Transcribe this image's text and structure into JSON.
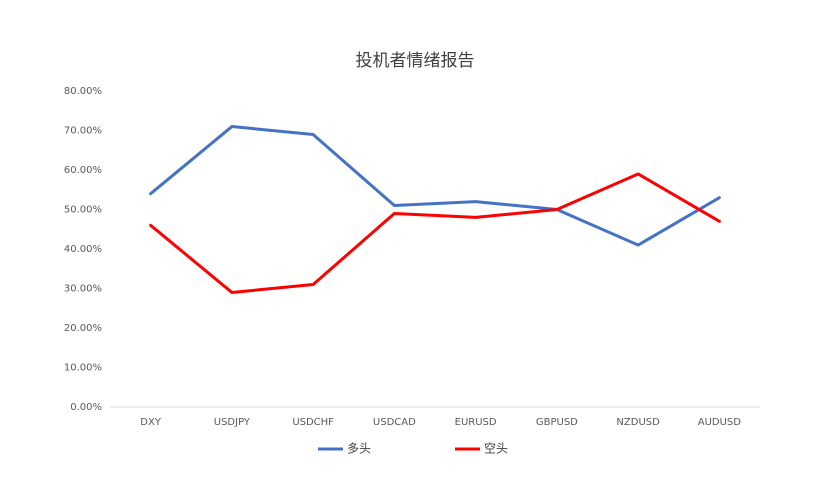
{
  "chart_data": {
    "type": "line",
    "title": "投机者情绪报告",
    "categories": [
      "DXY",
      "USDJPY",
      "USDCHF",
      "USDCAD",
      "EURUSD",
      "GBPUSD",
      "NZDUSD",
      "AUDUSD"
    ],
    "series": [
      {
        "name": "多头",
        "color": "#4472c4",
        "values": [
          54,
          71,
          69,
          51,
          52,
          50,
          41,
          53
        ]
      },
      {
        "name": "空头",
        "color": "#ff0000",
        "values": [
          46,
          29,
          31,
          49,
          48,
          50,
          59,
          47
        ]
      }
    ],
    "ylim": [
      0,
      80
    ],
    "yticks": [
      {
        "value": 0,
        "label": "0.00%"
      },
      {
        "value": 10,
        "label": "10.00%"
      },
      {
        "value": 20,
        "label": "20.00%"
      },
      {
        "value": 30,
        "label": "30.00%"
      },
      {
        "value": 40,
        "label": "40.00%"
      },
      {
        "value": 50,
        "label": "50.00%"
      },
      {
        "value": 60,
        "label": "60.00%"
      },
      {
        "value": 70,
        "label": "70.00%"
      },
      {
        "value": 80,
        "label": "80.00%"
      }
    ],
    "grid": false,
    "legend": "bottom"
  }
}
